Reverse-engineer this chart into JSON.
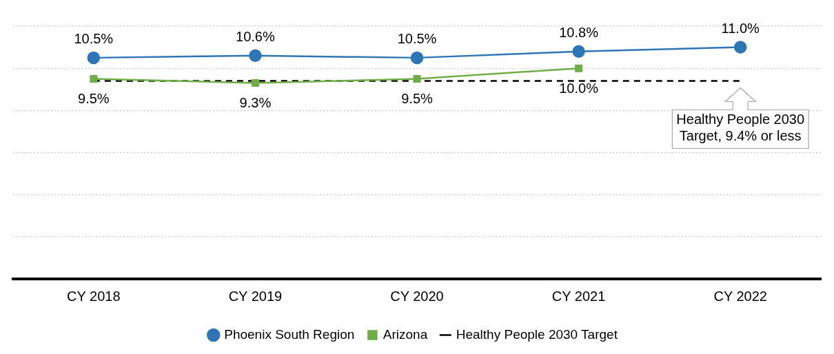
{
  "chart_data": {
    "type": "line",
    "categories": [
      "CY 2018",
      "CY 2019",
      "CY 2020",
      "CY 2021",
      "CY 2022"
    ],
    "series": [
      {
        "name": "Phoenix South Region",
        "color": "#2e75b6",
        "values": [
          10.5,
          10.6,
          10.5,
          10.8,
          11.0
        ],
        "marker": "circle",
        "line_style": "solid",
        "value_labels": [
          "10.5%",
          "10.6%",
          "10.5%",
          "10.8%",
          "11.0%"
        ]
      },
      {
        "name": "Arizona",
        "color": "#70ad47",
        "values": [
          9.5,
          9.3,
          9.5,
          10.0,
          null
        ],
        "marker": "square",
        "line_style": "solid",
        "value_labels": [
          "9.5%",
          "9.3%",
          "9.5%",
          "10.0%",
          null
        ]
      },
      {
        "name": "Healthy People 2030 Target",
        "color": "#000000",
        "values": [
          9.4,
          9.4,
          9.4,
          9.4,
          9.4
        ],
        "marker": "none",
        "line_style": "dashed"
      }
    ],
    "ylim": [
      0,
      12
    ],
    "yticks": [
      {
        "value": 0,
        "label": null
      },
      {
        "value": 2,
        "label": null
      },
      {
        "value": 4,
        "label": null
      },
      {
        "value": 6,
        "label": null
      },
      {
        "value": 8,
        "label": null
      },
      {
        "value": 10,
        "label": null
      },
      {
        "value": 12,
        "label": null
      }
    ],
    "grid": "y",
    "tick_labels": "x",
    "legend": "bottom",
    "annotations": [
      {
        "text": "Healthy People 2030 Target, 9.4% or less",
        "x": "CY 2022",
        "y": 9.4
      }
    ]
  }
}
